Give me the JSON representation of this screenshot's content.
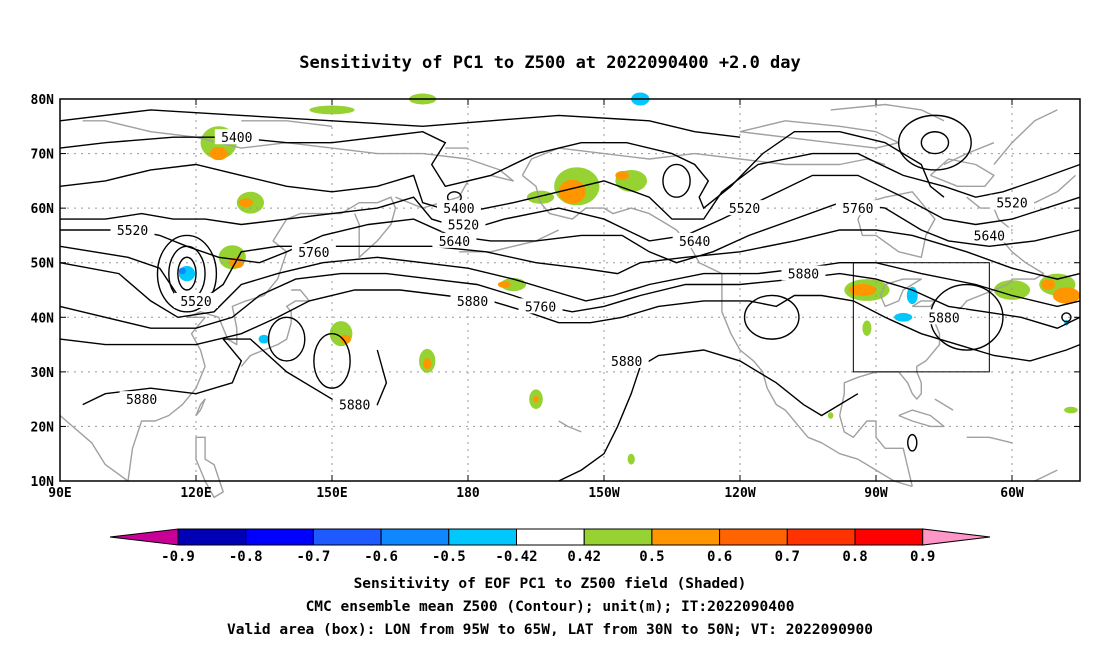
{
  "title": "Sensitivity of PC1 to Z500 at 2022090400 +2.0 day",
  "map": {
    "lat_ticks": [
      "80N",
      "70N",
      "60N",
      "50N",
      "40N",
      "30N",
      "20N",
      "10N"
    ],
    "lon_ticks": [
      "90E",
      "120E",
      "150E",
      "180",
      "150W",
      "120W",
      "90W",
      "60W"
    ],
    "lon_range": [
      90,
      315
    ],
    "lat_range": [
      10,
      80
    ],
    "gridlines": true,
    "valid_box": {
      "lon": [
        265,
        295
      ],
      "lat": [
        30,
        50
      ]
    },
    "contour_labels": [
      {
        "text": "5400",
        "lon": 129,
        "lat": 73
      },
      {
        "text": "5400",
        "lon": 178,
        "lat": 60
      },
      {
        "text": "5520",
        "lon": 106,
        "lat": 56
      },
      {
        "text": "5520",
        "lon": 179,
        "lat": 57
      },
      {
        "text": "5520",
        "lon": 120,
        "lat": 43
      },
      {
        "text": "5520",
        "lon": 241,
        "lat": 60
      },
      {
        "text": "5520",
        "lon": 300,
        "lat": 61
      },
      {
        "text": "5640",
        "lon": 177,
        "lat": 54
      },
      {
        "text": "5640",
        "lon": 230,
        "lat": 54
      },
      {
        "text": "5640",
        "lon": 295,
        "lat": 55
      },
      {
        "text": "5760",
        "lon": 146,
        "lat": 52
      },
      {
        "text": "5760",
        "lon": 196,
        "lat": 42
      },
      {
        "text": "5760",
        "lon": 266,
        "lat": 60
      },
      {
        "text": "5880",
        "lon": 181,
        "lat": 43
      },
      {
        "text": "5880",
        "lon": 254,
        "lat": 48
      },
      {
        "text": "5880",
        "lon": 285,
        "lat": 40
      },
      {
        "text": "5880",
        "lon": 215,
        "lat": 32
      },
      {
        "text": "5880",
        "lon": 108,
        "lat": 25
      },
      {
        "text": "5880",
        "lon": 155,
        "lat": 24
      }
    ]
  },
  "colorbar": {
    "labels": [
      "-0.9",
      "-0.8",
      "-0.7",
      "-0.6",
      "-0.5",
      "-0.42",
      "0.42",
      "0.5",
      "0.6",
      "0.7",
      "0.8",
      "0.9"
    ],
    "colors": [
      "#0000b4",
      "#0000ff",
      "#1e5aff",
      "#0f87ff",
      "#00c8ff",
      "#ffffff",
      "#96d232",
      "#ff9600",
      "#ff6400",
      "#ff3200",
      "#ff0000"
    ],
    "low_color": "#c80096",
    "high_color": "#ff96c8"
  },
  "caption": [
    "Sensitivity of EOF PC1 to Z500 field (Shaded)",
    "CMC ensemble mean Z500 (Contour); unit(m); IT:2022090400",
    "Valid area (box): LON from 95W to 65W, LAT from 30N to 50N; VT: 2022090900"
  ],
  "colors": {
    "coast": "#a0a0a0",
    "contour": "#000000",
    "grid": "#999999"
  }
}
